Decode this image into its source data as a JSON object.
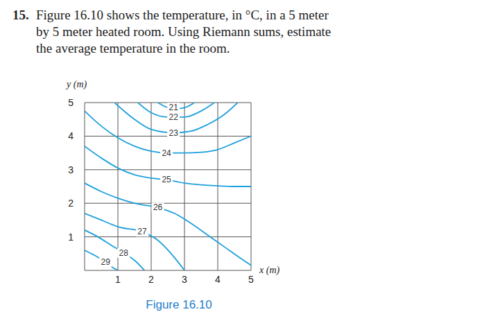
{
  "problem": {
    "number": "15.",
    "text": [
      "Figure 16.10 shows the temperature, in °C, in a 5 meter",
      "by 5 meter heated room. Using Riemann sums, estimate",
      "the average temperature in the room."
    ]
  },
  "chart_data": {
    "type": "contour",
    "caption": "Figure 16.10",
    "xlabel": "x (m)",
    "ylabel": "y (m)",
    "xlim": [
      0,
      5
    ],
    "ylim": [
      0,
      5
    ],
    "xticks": [
      1,
      2,
      3,
      4,
      5
    ],
    "yticks": [
      1,
      2,
      3,
      4,
      5
    ],
    "grid": true,
    "color": "#1ea0dc",
    "contours": [
      {
        "level": 21,
        "label_at": [
          2.67,
          4.85
        ],
        "x": [
          2.2,
          2.5,
          2.7,
          3.0,
          3.3
        ],
        "y": [
          5.0,
          4.85,
          4.82,
          4.85,
          5.0
        ]
      },
      {
        "level": 22,
        "label_at": [
          2.67,
          4.57
        ],
        "x": [
          1.6,
          2.0,
          2.5,
          3.0,
          3.5,
          3.9
        ],
        "y": [
          5.0,
          4.7,
          4.57,
          4.57,
          4.75,
          5.0
        ]
      },
      {
        "level": 23,
        "label_at": [
          2.67,
          4.1
        ],
        "x": [
          0.9,
          1.5,
          2.0,
          2.67,
          3.2,
          3.7,
          4.2,
          4.6
        ],
        "y": [
          5.0,
          4.5,
          4.2,
          4.1,
          4.15,
          4.35,
          4.65,
          5.0
        ]
      },
      {
        "level": 24,
        "label_at": [
          2.46,
          3.5
        ],
        "x": [
          0.0,
          0.5,
          1.0,
          1.5,
          2.0,
          2.46,
          3.0,
          3.5,
          4.0,
          4.5,
          5.0
        ],
        "y": [
          4.75,
          4.3,
          3.95,
          3.7,
          3.55,
          3.5,
          3.5,
          3.52,
          3.6,
          3.8,
          4.0
        ]
      },
      {
        "level": 25,
        "label_at": [
          2.46,
          2.7
        ],
        "x": [
          0.0,
          0.5,
          1.0,
          1.5,
          2.0,
          2.46,
          3.0,
          3.5,
          4.0,
          4.5,
          5.0
        ],
        "y": [
          3.7,
          3.35,
          3.05,
          2.85,
          2.75,
          2.7,
          2.6,
          2.55,
          2.52,
          2.5,
          2.5
        ]
      },
      {
        "level": 26,
        "label_at": [
          2.2,
          1.87
        ],
        "x": [
          0.0,
          0.5,
          1.0,
          1.5,
          2.2,
          2.7,
          3.2,
          3.7,
          4.2,
          4.7,
          5.0
        ],
        "y": [
          2.6,
          2.35,
          2.15,
          2.0,
          1.87,
          1.7,
          1.4,
          1.05,
          0.7,
          0.35,
          0.15
        ]
      },
      {
        "level": 27,
        "label_at": [
          1.73,
          1.15
        ],
        "x": [
          0.0,
          0.5,
          1.0,
          1.73,
          2.2,
          2.6,
          3.0
        ],
        "y": [
          1.7,
          1.5,
          1.3,
          1.15,
          0.9,
          0.5,
          0.0
        ]
      },
      {
        "level": 28,
        "label_at": [
          1.17,
          0.52
        ],
        "x": [
          0.0,
          0.4,
          0.8,
          1.17,
          1.5,
          1.8
        ],
        "y": [
          1.2,
          1.0,
          0.75,
          0.52,
          0.3,
          0.0
        ]
      },
      {
        "level": 29,
        "label_at": [
          0.63,
          0.25
        ],
        "x": [
          0.0,
          0.3,
          0.63,
          0.9,
          1.0
        ],
        "y": [
          0.6,
          0.45,
          0.25,
          0.05,
          0.0
        ]
      }
    ]
  }
}
